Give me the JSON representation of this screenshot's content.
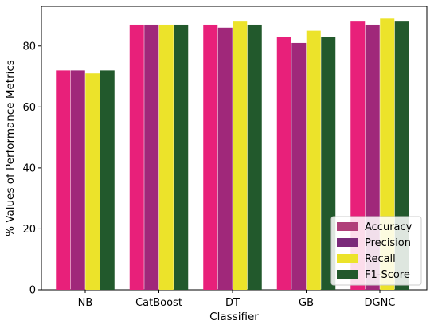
{
  "chart_data": {
    "type": "bar",
    "title": "",
    "xlabel": "Classifier",
    "ylabel": "% Values of Performance Metrics",
    "categories": [
      "NB",
      "CatBoost",
      "DT",
      "GB",
      "DGNC"
    ],
    "ylim": [
      0,
      93
    ],
    "yticks": [
      0,
      20,
      40,
      60,
      80
    ],
    "series": [
      {
        "name": "Accuracy",
        "values": [
          72,
          87,
          87,
          83,
          88
        ],
        "color": "#e8207a",
        "swatch_color": "#b0407a"
      },
      {
        "name": "Precision",
        "values": [
          72,
          87,
          86,
          81,
          87
        ],
        "color": "#a0287a",
        "swatch_color": "#7a2a7a"
      },
      {
        "name": "Recall",
        "values": [
          71,
          87,
          88,
          85,
          89
        ],
        "color": "#ece32a",
        "swatch_color": "#ece32a"
      },
      {
        "name": "F1-Score",
        "values": [
          72,
          87,
          87,
          83,
          88
        ],
        "color": "#22592c",
        "swatch_color": "#22592c"
      }
    ],
    "grid": false,
    "legend_position": "lower-right"
  }
}
